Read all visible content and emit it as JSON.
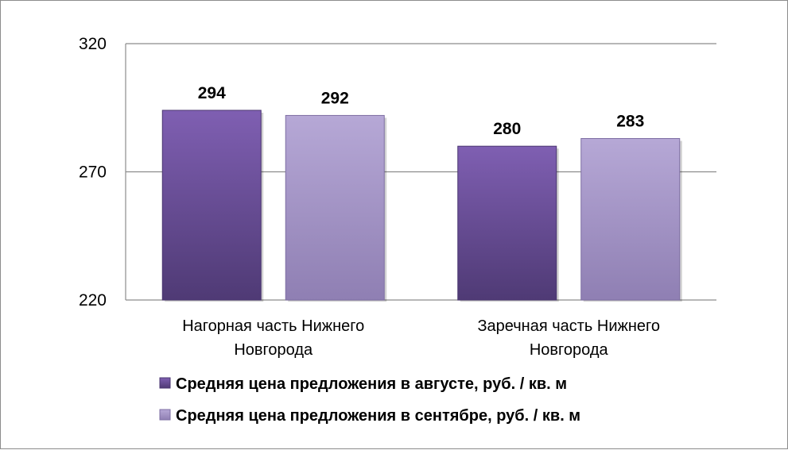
{
  "chart_data": {
    "type": "bar",
    "categories": [
      [
        "Нагорная часть Нижнего",
        "Новгорода"
      ],
      [
        "Заречная часть Нижнего",
        "Новгорода"
      ]
    ],
    "series": [
      {
        "name": "Средняя цена предложения в августе, руб. / кв. м",
        "values": [
          294,
          280
        ],
        "color": "#6b4d99"
      },
      {
        "name": "Средняя цена предложения в сентябре, руб. / кв. м",
        "values": [
          292,
          283
        ],
        "color": "#a596c8"
      }
    ],
    "ylim": [
      220,
      320
    ],
    "yticks": [
      "220",
      "270",
      "320"
    ],
    "grid": true,
    "legend": "bottom",
    "title": "",
    "xlabel": "",
    "ylabel": ""
  }
}
